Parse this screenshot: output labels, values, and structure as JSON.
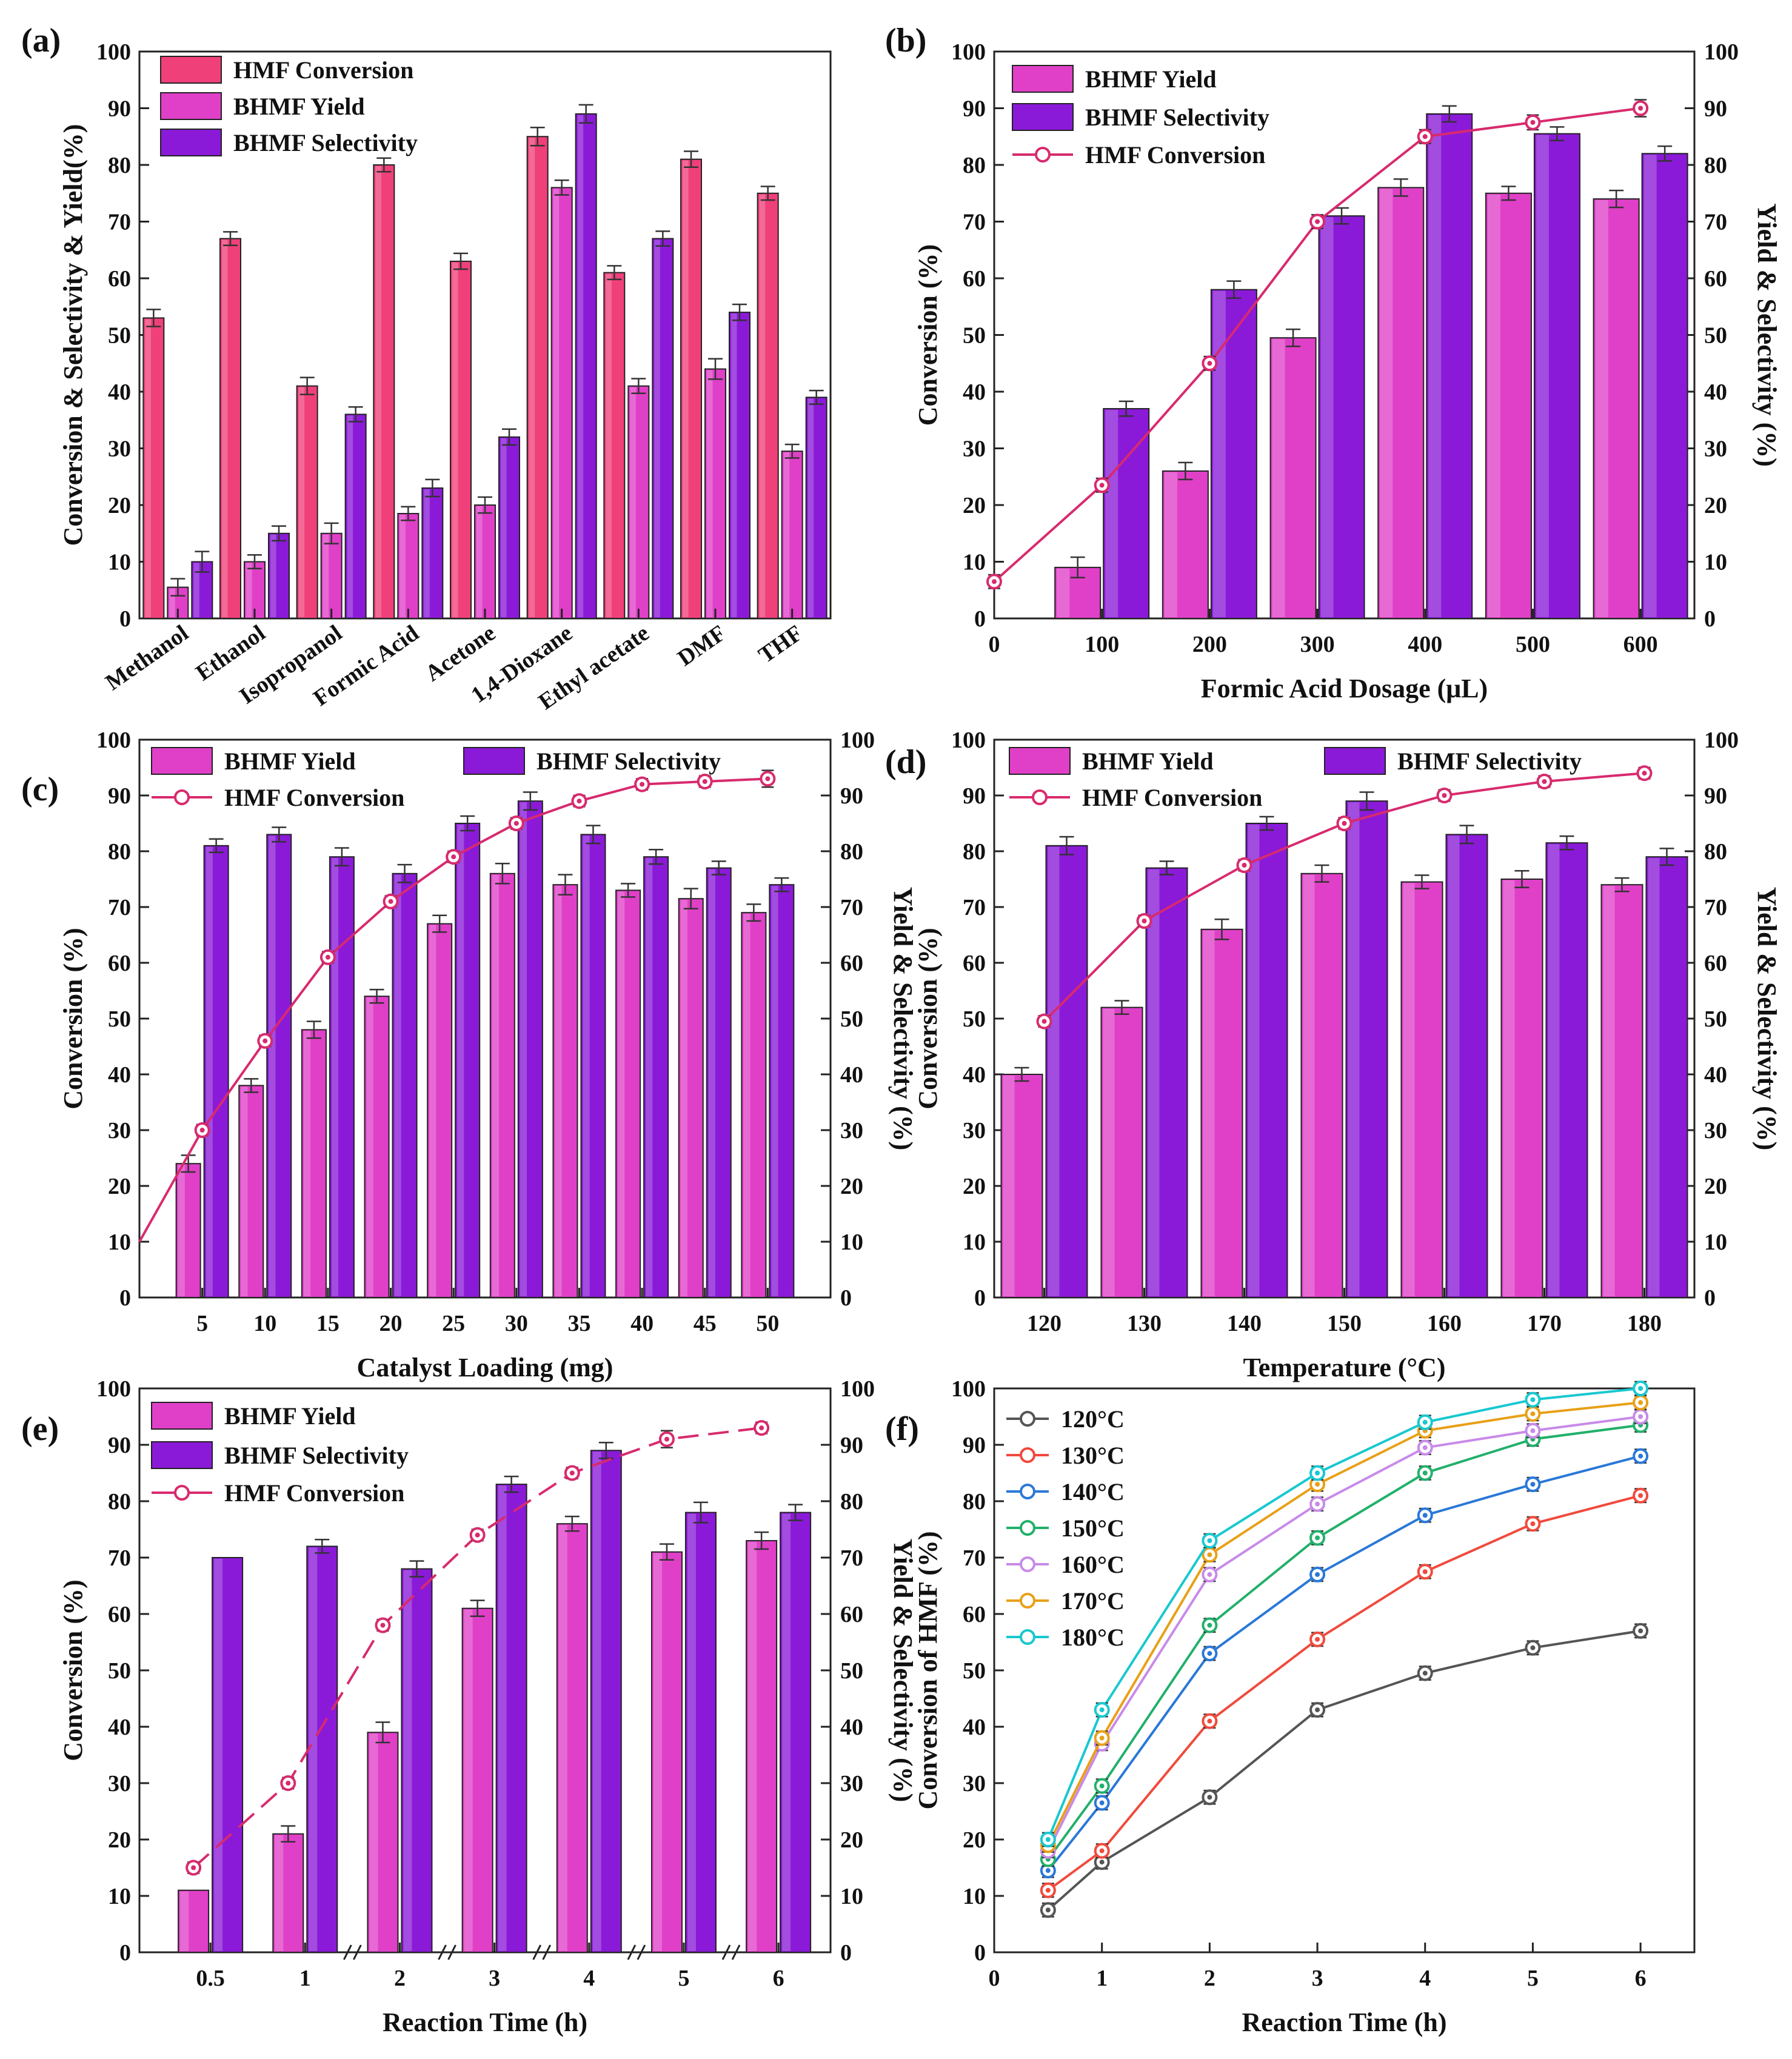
{
  "chart_data": [
    {
      "panel": "(a)",
      "type": "bar",
      "categories": [
        "Methanol",
        "Ethanol",
        "Isopropanol",
        "Formic Acid",
        "Acetone",
        "1,4-Dioxane",
        "Ethyl acetate",
        "DMF",
        "THF"
      ],
      "series": [
        {
          "name": "HMF Conversion",
          "color": "#f0407a",
          "values": [
            53,
            67,
            41,
            80,
            63,
            85,
            61,
            81,
            75
          ],
          "err": [
            1.5,
            1.2,
            1.5,
            1.2,
            1.4,
            1.6,
            1.2,
            1.4,
            1.2
          ]
        },
        {
          "name": "BHMF Yield",
          "color": "#e040c8",
          "values": [
            5.5,
            10,
            15,
            18.5,
            20,
            76,
            41,
            44,
            29.5
          ],
          "err": [
            1.5,
            1.2,
            1.8,
            1.2,
            1.4,
            1.3,
            1.3,
            1.8,
            1.2
          ]
        },
        {
          "name": "BHMF Selectivity",
          "color": "#8a1ad8",
          "values": [
            10,
            15,
            36,
            23,
            32,
            89,
            67,
            54,
            39
          ],
          "err": [
            1.8,
            1.3,
            1.3,
            1.5,
            1.4,
            1.6,
            1.3,
            1.4,
            1.2
          ]
        }
      ],
      "ylabel": "Conversion & Selectivity & Yield(%)",
      "xlabel": "",
      "ylim": [
        0,
        100
      ],
      "yticks": [
        "0",
        "10",
        "20",
        "30",
        "40",
        "50",
        "60",
        "70",
        "80",
        "90",
        "100"
      ],
      "legend": "top-left"
    },
    {
      "panel": "(b)",
      "type": "bar+line",
      "categories": [
        "100",
        "200",
        "300",
        "400",
        "500",
        "600"
      ],
      "x_values": [
        100,
        200,
        300,
        400,
        500,
        600
      ],
      "xticks": [
        "0",
        "100",
        "200",
        "300",
        "400",
        "500",
        "600"
      ],
      "series": [
        {
          "name": "BHMF Yield",
          "color": "#e040c8",
          "values": [
            9,
            26,
            49.5,
            76,
            75,
            74
          ],
          "err": [
            1.8,
            1.5,
            1.5,
            1.5,
            1.2,
            1.5
          ]
        },
        {
          "name": "BHMF Selectivity",
          "color": "#8a1ad8",
          "values": [
            37,
            58,
            71,
            89,
            85.5,
            82
          ],
          "err": [
            1.3,
            1.5,
            1.4,
            1.4,
            1.2,
            1.3
          ]
        }
      ],
      "line": {
        "name": "HMF Conversion",
        "color": "#d82a6e",
        "x": [
          0,
          100,
          200,
          300,
          400,
          500,
          600
        ],
        "values": [
          6.5,
          23.5,
          45,
          70,
          85,
          87.5,
          90
        ],
        "err": [
          1.2,
          1.2,
          1.2,
          1.2,
          1.2,
          1.3,
          1.5
        ]
      },
      "ylabel": "Conversion  (%)",
      "ylabel_right": "Yield & Selectivity (%)",
      "xlabel": "Formic Acid Dosage (μL)",
      "ylim": [
        0,
        100
      ],
      "yticks": [
        "0",
        "10",
        "20",
        "30",
        "40",
        "50",
        "60",
        "70",
        "80",
        "90",
        "100"
      ],
      "legend": "top-left"
    },
    {
      "panel": "(c)",
      "type": "bar+line",
      "categories": [
        "5",
        "10",
        "15",
        "20",
        "25",
        "30",
        "35",
        "40",
        "45",
        "50"
      ],
      "series": [
        {
          "name": "BHMF Yield",
          "color": "#e040c8",
          "values": [
            24,
            38,
            48,
            54,
            67,
            76,
            74,
            73,
            71.5,
            69
          ],
          "err": [
            1.5,
            1.2,
            1.5,
            1.2,
            1.5,
            1.8,
            1.8,
            1.2,
            1.8,
            1.5
          ]
        },
        {
          "name": "BHMF Selectivity",
          "color": "#8a1ad8",
          "values": [
            81,
            83,
            79,
            76,
            85,
            89,
            83,
            79,
            77,
            74
          ],
          "err": [
            1.2,
            1.3,
            1.6,
            1.6,
            1.3,
            1.6,
            1.6,
            1.3,
            1.2,
            1.2
          ]
        }
      ],
      "line": {
        "name": "HMF Conversion",
        "color": "#d82a6e",
        "x": [
          0,
          5,
          10,
          15,
          20,
          25,
          30,
          35,
          40,
          45,
          50
        ],
        "values": [
          10,
          30,
          46,
          61,
          71,
          79,
          85,
          89,
          92,
          92.5,
          93
        ],
        "err": [
          0,
          1,
          1,
          1,
          1,
          1,
          1,
          1,
          1,
          1,
          1.5
        ]
      },
      "ylabel": "Conversion  (%)",
      "ylabel_right": "Yield & Selectivity (%)",
      "xlabel": "Catalyst Loading (mg)",
      "ylim": [
        0,
        100
      ],
      "yticks": [
        "0",
        "10",
        "20",
        "30",
        "40",
        "50",
        "60",
        "70",
        "80",
        "90",
        "100"
      ],
      "legend": "top-left"
    },
    {
      "panel": "(d)",
      "type": "bar+line",
      "categories": [
        "120",
        "130",
        "140",
        "150",
        "160",
        "170",
        "180"
      ],
      "series": [
        {
          "name": "BHMF Yield",
          "color": "#e040c8",
          "values": [
            40,
            52,
            66,
            76,
            74.5,
            75,
            74
          ],
          "err": [
            1.2,
            1.2,
            1.8,
            1.5,
            1.2,
            1.5,
            1.2
          ]
        },
        {
          "name": "BHMF Selectivity",
          "color": "#8a1ad8",
          "values": [
            81,
            77,
            85,
            89,
            83,
            81.5,
            79
          ],
          "err": [
            1.6,
            1.2,
            1.2,
            1.6,
            1.6,
            1.2,
            1.5
          ]
        }
      ],
      "line": {
        "name": "HMF Conversion",
        "color": "#d82a6e",
        "x": [
          "120",
          "130",
          "140",
          "150",
          "160",
          "170",
          "180"
        ],
        "values": [
          49.5,
          67.5,
          77.5,
          85,
          90,
          92.5,
          94
        ],
        "err": [
          1,
          1,
          1,
          1,
          1,
          1,
          1
        ]
      },
      "ylabel": "Conversion  (%)",
      "ylabel_right": "Yield & Selectivity (%)",
      "xlabel": "Temperature (°C)",
      "ylim": [
        0,
        100
      ],
      "yticks": [
        "0",
        "10",
        "20",
        "30",
        "40",
        "50",
        "60",
        "70",
        "80",
        "90",
        "100"
      ],
      "legend": "top-left"
    },
    {
      "panel": "(e)",
      "type": "bar+line",
      "categories": [
        "0.5",
        "1",
        "2",
        "3",
        "4",
        "5",
        "6"
      ],
      "series": [
        {
          "name": "BHMF Yield",
          "color": "#e040c8",
          "values": [
            11,
            21,
            39,
            61,
            76,
            71,
            73
          ],
          "err": [
            0,
            1.4,
            1.8,
            1.4,
            1.3,
            1.4,
            1.5
          ]
        },
        {
          "name": "BHMF Selectivity",
          "color": "#8a1ad8",
          "values": [
            70,
            72,
            68,
            83,
            89,
            78,
            78
          ],
          "err": [
            0,
            1.2,
            1.4,
            1.4,
            1.4,
            1.8,
            1.4
          ]
        }
      ],
      "line": {
        "name": "HMF Conversion",
        "color": "#d82a6e",
        "x": [
          "0.5",
          "1",
          "2",
          "3",
          "4",
          "5",
          "6"
        ],
        "values": [
          15,
          30,
          58,
          74,
          85,
          91,
          93
        ],
        "err": [
          1,
          1,
          1,
          1,
          1,
          1.5,
          1
        ],
        "style": "dashed"
      },
      "ylabel": "Conversion  (%)",
      "ylabel_right": "Yield & Selectivity (%)",
      "xlabel": "Reaction Time (h)",
      "ylim": [
        0,
        100
      ],
      "yticks": [
        "0",
        "10",
        "20",
        "30",
        "40",
        "50",
        "60",
        "70",
        "80",
        "90",
        "100"
      ],
      "legend": "top-left"
    },
    {
      "panel": "(f)",
      "type": "line",
      "x": [
        0.5,
        1,
        2,
        3,
        4,
        5,
        6
      ],
      "xticks": [
        "0",
        "1",
        "2",
        "3",
        "4",
        "5",
        "6"
      ],
      "xlim": [
        0,
        6.5
      ],
      "series": [
        {
          "name": "120°C",
          "color": "#555555",
          "values": [
            7.5,
            16,
            27.5,
            43,
            49.5,
            54,
            57
          ]
        },
        {
          "name": "130°C",
          "color": "#f04a3c",
          "values": [
            11,
            18,
            41,
            55.5,
            67.5,
            76,
            81
          ]
        },
        {
          "name": "140°C",
          "color": "#2a78d8",
          "values": [
            14.5,
            26.5,
            53,
            67,
            77.5,
            83,
            88
          ]
        },
        {
          "name": "150°C",
          "color": "#22b06a",
          "values": [
            16.5,
            29.5,
            58,
            73.5,
            85,
            91,
            93.5
          ]
        },
        {
          "name": "160°C",
          "color": "#c88ae8",
          "values": [
            18,
            37,
            67,
            79.5,
            89.5,
            92.5,
            95
          ]
        },
        {
          "name": "170°C",
          "color": "#e8a018",
          "values": [
            19,
            38,
            70.5,
            83,
            92.5,
            95.5,
            97.5
          ]
        },
        {
          "name": "180°C",
          "color": "#18c8d0",
          "values": [
            20,
            43,
            73,
            85,
            94,
            98,
            100
          ]
        }
      ],
      "ylabel": "Conversion of HMF (%)",
      "xlabel": "Reaction Time (h)",
      "ylim": [
        0,
        100
      ],
      "yticks": [
        "0",
        "10",
        "20",
        "30",
        "40",
        "50",
        "60",
        "70",
        "80",
        "90",
        "100"
      ],
      "legend": "top-left"
    }
  ]
}
